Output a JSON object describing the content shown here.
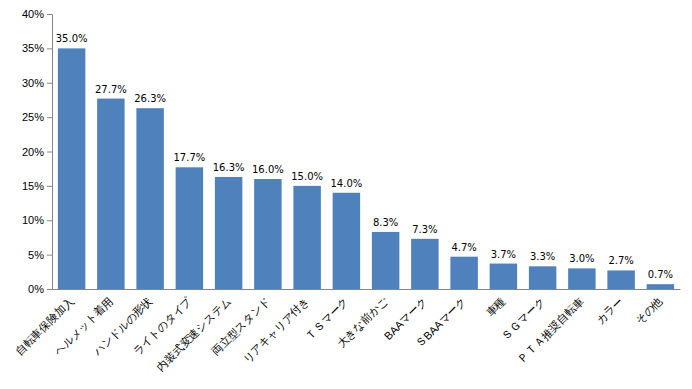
{
  "chart_data": {
    "type": "bar",
    "categories": [
      "自転車保険加入",
      "ヘルメット着用",
      "ハンドルの形状",
      "ライトのタイプ",
      "内装式変速システム",
      "両立型スタンド",
      "リアキャリア付き",
      "ＴＳマーク",
      "大きな前かご",
      "BAAマーク",
      "ＳBAAマーク",
      "車種",
      "ＳＧマーク",
      "ＰＴＡ推奨自転車",
      "カラー",
      "その他"
    ],
    "values": [
      35.0,
      27.7,
      26.3,
      17.7,
      16.3,
      16.0,
      15.0,
      14.0,
      8.3,
      7.3,
      4.7,
      3.7,
      3.3,
      3.0,
      2.7,
      0.7
    ],
    "value_labels": [
      "35.0%",
      "27.7%",
      "26.3%",
      "17.7%",
      "16.3%",
      "16.0%",
      "15.0%",
      "14.0%",
      "8.3%",
      "7.3%",
      "4.7%",
      "3.7%",
      "3.3%",
      "3.0%",
      "2.7%",
      "0.7%"
    ],
    "data_labels": true,
    "color": "#4f81bd",
    "grid": false,
    "ylim": [
      0,
      40
    ],
    "yticks": [
      {
        "value": 0,
        "label": "0%"
      },
      {
        "value": 5,
        "label": "5%"
      },
      {
        "value": 10,
        "label": "10%"
      },
      {
        "value": 15,
        "label": "15%"
      },
      {
        "value": 20,
        "label": "20%"
      },
      {
        "value": 25,
        "label": "25%"
      },
      {
        "value": 30,
        "label": "30%"
      },
      {
        "value": 35,
        "label": "35%"
      },
      {
        "value": 40,
        "label": "40%"
      }
    ]
  }
}
